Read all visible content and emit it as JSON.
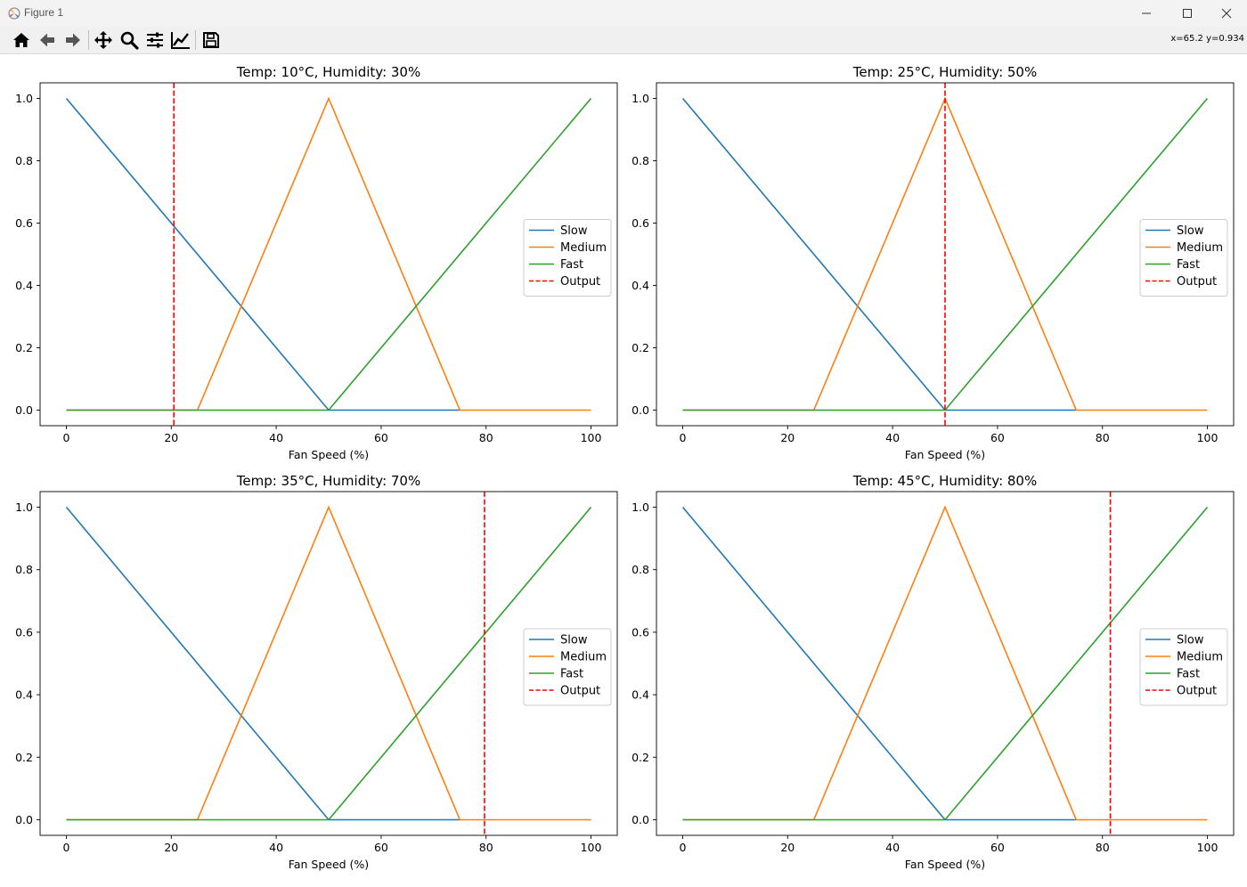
{
  "window": {
    "title": "Figure 1"
  },
  "toolbar": {
    "buttons": [
      "home-icon",
      "back-icon",
      "forward-icon",
      "pan-icon",
      "zoom-icon",
      "configure-subplots-icon",
      "edit-axis-icon",
      "save-icon"
    ],
    "coords": "x=65.2 y=0.934"
  },
  "colors": {
    "slow": "#1f77b4",
    "medium": "#ff7f0e",
    "fast": "#2ca02c",
    "output": "#ff0000"
  },
  "chart_data": [
    {
      "type": "line",
      "title": "Temp: 10°C, Humidity: 30%",
      "xlabel": "Fan Speed (%)",
      "ylabel": "",
      "xlim": [
        -5,
        105
      ],
      "ylim": [
        -0.05,
        1.05
      ],
      "xticks": [
        0,
        20,
        40,
        60,
        80,
        100
      ],
      "yticks": [
        0.0,
        0.2,
        0.4,
        0.6,
        0.8,
        1.0
      ],
      "legend": "center-right",
      "series": [
        {
          "name": "Slow",
          "x": [
            0,
            50,
            75
          ],
          "y": [
            1,
            0,
            0
          ]
        },
        {
          "name": "Medium",
          "x": [
            0,
            25,
            50,
            75,
            100
          ],
          "y": [
            0,
            0,
            1,
            0,
            0
          ]
        },
        {
          "name": "Fast",
          "x": [
            0,
            50,
            100
          ],
          "y": [
            0,
            0,
            1
          ]
        }
      ],
      "output": {
        "name": "Output",
        "x": 20.5
      }
    },
    {
      "type": "line",
      "title": "Temp: 25°C, Humidity: 50%",
      "xlabel": "Fan Speed (%)",
      "ylabel": "",
      "xlim": [
        -5,
        105
      ],
      "ylim": [
        -0.05,
        1.05
      ],
      "xticks": [
        0,
        20,
        40,
        60,
        80,
        100
      ],
      "yticks": [
        0.0,
        0.2,
        0.4,
        0.6,
        0.8,
        1.0
      ],
      "legend": "center-right",
      "series": [
        {
          "name": "Slow",
          "x": [
            0,
            50,
            75
          ],
          "y": [
            1,
            0,
            0
          ]
        },
        {
          "name": "Medium",
          "x": [
            0,
            25,
            50,
            75,
            100
          ],
          "y": [
            0,
            0,
            1,
            0,
            0
          ]
        },
        {
          "name": "Fast",
          "x": [
            0,
            50,
            100
          ],
          "y": [
            0,
            0,
            1
          ]
        }
      ],
      "output": {
        "name": "Output",
        "x": 50.0
      }
    },
    {
      "type": "line",
      "title": "Temp: 35°C, Humidity: 70%",
      "xlabel": "Fan Speed (%)",
      "ylabel": "",
      "xlim": [
        -5,
        105
      ],
      "ylim": [
        -0.05,
        1.05
      ],
      "xticks": [
        0,
        20,
        40,
        60,
        80,
        100
      ],
      "yticks": [
        0.0,
        0.2,
        0.4,
        0.6,
        0.8,
        1.0
      ],
      "legend": "center-right",
      "series": [
        {
          "name": "Slow",
          "x": [
            0,
            50,
            75
          ],
          "y": [
            1,
            0,
            0
          ]
        },
        {
          "name": "Medium",
          "x": [
            0,
            25,
            50,
            75,
            100
          ],
          "y": [
            0,
            0,
            1,
            0,
            0
          ]
        },
        {
          "name": "Fast",
          "x": [
            0,
            50,
            100
          ],
          "y": [
            0,
            0,
            1
          ]
        }
      ],
      "output": {
        "name": "Output",
        "x": 79.7
      }
    },
    {
      "type": "line",
      "title": "Temp: 45°C, Humidity: 80%",
      "xlabel": "Fan Speed (%)",
      "ylabel": "",
      "xlim": [
        -5,
        105
      ],
      "ylim": [
        -0.05,
        1.05
      ],
      "xticks": [
        0,
        20,
        40,
        60,
        80,
        100
      ],
      "yticks": [
        0.0,
        0.2,
        0.4,
        0.6,
        0.8,
        1.0
      ],
      "legend": "center-right",
      "series": [
        {
          "name": "Slow",
          "x": [
            0,
            50,
            75
          ],
          "y": [
            1,
            0,
            0
          ]
        },
        {
          "name": "Medium",
          "x": [
            0,
            25,
            50,
            75,
            100
          ],
          "y": [
            0,
            0,
            1,
            0,
            0
          ]
        },
        {
          "name": "Fast",
          "x": [
            0,
            50,
            100
          ],
          "y": [
            0,
            0,
            1
          ]
        }
      ],
      "output": {
        "name": "Output",
        "x": 81.5
      }
    }
  ]
}
